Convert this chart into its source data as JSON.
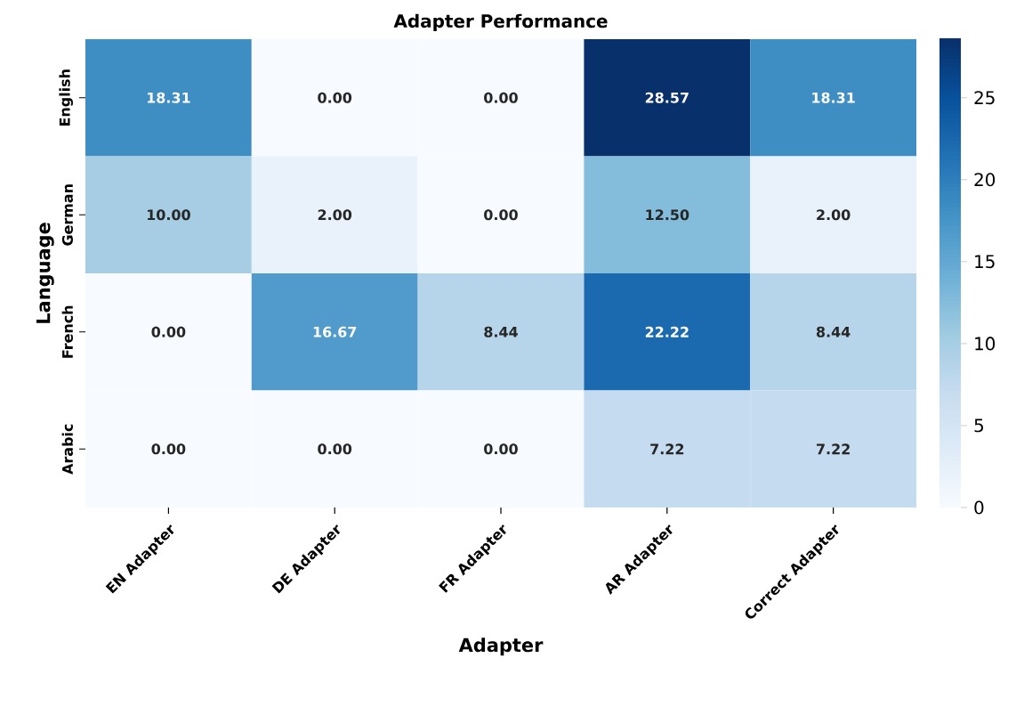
{
  "chart_data": {
    "type": "heatmap",
    "title": "Adapter Performance",
    "xlabel": "Adapter",
    "ylabel": "Language",
    "categories": [
      "EN Adapter",
      "DE Adapter",
      "FR Adapter",
      "AR Adapter",
      "Correct Adapter"
    ],
    "y_categories": [
      "English",
      "German",
      "French",
      "Arabic"
    ],
    "cells": [
      [
        18.31,
        0.0,
        0.0,
        28.57,
        18.31
      ],
      [
        10.0,
        2.0,
        0.0,
        12.5,
        2.0
      ],
      [
        0.0,
        16.67,
        8.44,
        22.22,
        8.44
      ],
      [
        0.0,
        0.0,
        0.0,
        7.22,
        7.22
      ]
    ],
    "cell_labels": [
      [
        "18.31",
        "0.00",
        "0.00",
        "28.57",
        "18.31"
      ],
      [
        "10.00",
        "2.00",
        "0.00",
        "12.50",
        "2.00"
      ],
      [
        "0.00",
        "16.67",
        "8.44",
        "22.22",
        "8.44"
      ],
      [
        "0.00",
        "0.00",
        "0.00",
        "7.22",
        "7.22"
      ]
    ],
    "clim": [
      0,
      28.57
    ],
    "cticks": [
      0,
      5,
      10,
      15,
      20,
      25
    ]
  }
}
